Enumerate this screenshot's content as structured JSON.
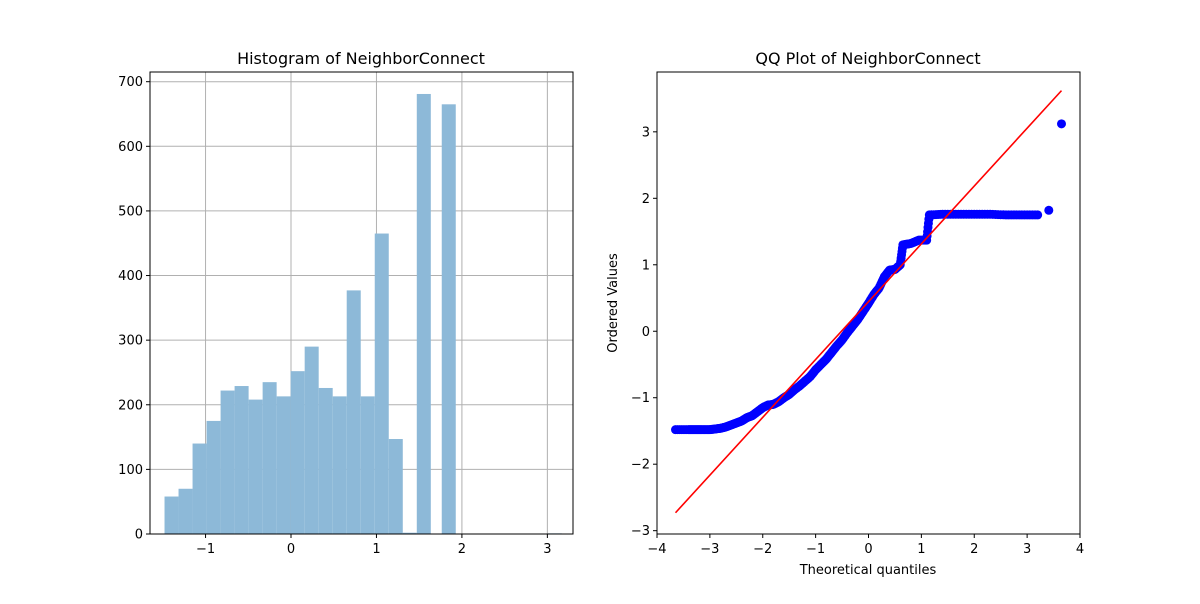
{
  "chart_data": [
    {
      "type": "bar",
      "title": "Histogram of NeighborConnect",
      "xlabel": "",
      "ylabel": "",
      "xlim": [
        -1.65,
        3.3
      ],
      "ylim": [
        0,
        715
      ],
      "grid": true,
      "bar_color": "#8db9d8",
      "x_ticks": [
        -1,
        0,
        1,
        2,
        3
      ],
      "x_tick_labels": [
        "−1",
        "0",
        "1",
        "2",
        "3"
      ],
      "y_ticks": [
        0,
        100,
        200,
        300,
        400,
        500,
        600,
        700
      ],
      "y_tick_labels": [
        "0",
        "100",
        "200",
        "300",
        "400",
        "500",
        "600",
        "700"
      ],
      "bin_width": 0.164,
      "bins": [
        {
          "x0": -1.48,
          "value": 58
        },
        {
          "x0": -1.316,
          "value": 70
        },
        {
          "x0": -1.152,
          "value": 140
        },
        {
          "x0": -0.988,
          "value": 175
        },
        {
          "x0": -0.824,
          "value": 222
        },
        {
          "x0": -0.66,
          "value": 229
        },
        {
          "x0": -0.496,
          "value": 208
        },
        {
          "x0": -0.332,
          "value": 235
        },
        {
          "x0": -0.168,
          "value": 213
        },
        {
          "x0": -0.004,
          "value": 252
        },
        {
          "x0": 0.16,
          "value": 290
        },
        {
          "x0": 0.324,
          "value": 226
        },
        {
          "x0": 0.488,
          "value": 213
        },
        {
          "x0": 0.652,
          "value": 377
        },
        {
          "x0": 0.816,
          "value": 213
        },
        {
          "x0": 0.98,
          "value": 465
        },
        {
          "x0": 1.144,
          "value": 147
        },
        {
          "x0": 1.308,
          "value": 2
        },
        {
          "x0": 1.472,
          "value": 681
        },
        {
          "x0": 1.8,
          "value": 0
        },
        {
          "x0": 1.764,
          "value": 665
        },
        {
          "x0": 3.005,
          "value": 1
        }
      ]
    },
    {
      "type": "scatter",
      "title": "QQ Plot of NeighborConnect",
      "xlabel": "Theoretical quantiles",
      "ylabel": "Ordered Values",
      "xlim": [
        -4,
        4
      ],
      "ylim": [
        -3.05,
        3.9
      ],
      "grid": false,
      "point_color": "#0000ff",
      "line_color": "#ff0000",
      "x_ticks": [
        -4,
        -3,
        -2,
        -1,
        0,
        1,
        2,
        3,
        4
      ],
      "x_tick_labels": [
        "−4",
        "−3",
        "−2",
        "−1",
        "0",
        "1",
        "2",
        "3",
        "4"
      ],
      "y_ticks": [
        -3,
        -2,
        -1,
        0,
        1,
        2,
        3
      ],
      "y_tick_labels": [
        "−3",
        "−2",
        "−1",
        "0",
        "1",
        "2",
        "3"
      ],
      "fit_line": {
        "x": [
          -3.65,
          3.65
        ],
        "y": [
          -2.73,
          3.62
        ]
      },
      "points": [
        [
          -3.65,
          -1.48
        ],
        [
          -3.41,
          -1.48
        ],
        [
          -3.28,
          -1.48
        ],
        [
          -3.15,
          -1.48
        ],
        [
          -3.0,
          -1.48
        ],
        [
          -2.9,
          -1.47
        ],
        [
          -2.8,
          -1.46
        ],
        [
          -2.7,
          -1.44
        ],
        [
          -2.6,
          -1.41
        ],
        [
          -2.5,
          -1.38
        ],
        [
          -2.4,
          -1.35
        ],
        [
          -2.3,
          -1.3
        ],
        [
          -2.2,
          -1.27
        ],
        [
          -2.1,
          -1.21
        ],
        [
          -2.0,
          -1.15
        ],
        [
          -1.9,
          -1.11
        ],
        [
          -1.8,
          -1.1
        ],
        [
          -1.7,
          -1.06
        ],
        [
          -1.6,
          -1.0
        ],
        [
          -1.5,
          -0.95
        ],
        [
          -1.4,
          -0.88
        ],
        [
          -1.3,
          -0.82
        ],
        [
          -1.2,
          -0.75
        ],
        [
          -1.1,
          -0.68
        ],
        [
          -1.0,
          -0.58
        ],
        [
          -0.9,
          -0.5
        ],
        [
          -0.8,
          -0.42
        ],
        [
          -0.7,
          -0.32
        ],
        [
          -0.6,
          -0.22
        ],
        [
          -0.5,
          -0.13
        ],
        [
          -0.4,
          -0.02
        ],
        [
          -0.3,
          0.08
        ],
        [
          -0.2,
          0.18
        ],
        [
          -0.1,
          0.3
        ],
        [
          0.0,
          0.42
        ],
        [
          0.1,
          0.55
        ],
        [
          0.2,
          0.65
        ],
        [
          0.3,
          0.82
        ],
        [
          0.4,
          0.92
        ],
        [
          0.5,
          0.93
        ],
        [
          0.6,
          1.0
        ],
        [
          0.65,
          1.3
        ],
        [
          0.8,
          1.32
        ],
        [
          0.95,
          1.37
        ],
        [
          1.1,
          1.37
        ],
        [
          1.15,
          1.75
        ],
        [
          1.4,
          1.76
        ],
        [
          1.7,
          1.76
        ],
        [
          2.0,
          1.76
        ],
        [
          2.3,
          1.76
        ],
        [
          2.6,
          1.75
        ],
        [
          2.9,
          1.75
        ],
        [
          3.2,
          1.75
        ],
        [
          3.41,
          1.82
        ],
        [
          3.65,
          3.12
        ]
      ]
    }
  ]
}
